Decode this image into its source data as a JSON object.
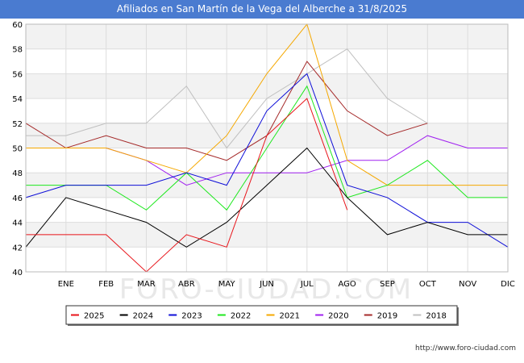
{
  "page": {
    "watermark": "FORO-CIUDAD.COM",
    "footer_url": "http://www.foro-ciudad.com"
  },
  "chart_data": {
    "type": "line",
    "title": "Afiliados en San Martín de la Vega del Alberche a 31/8/2025",
    "xlabel": "",
    "ylabel": "",
    "x": [
      "",
      "ENE",
      "FEB",
      "MAR",
      "ABR",
      "MAY",
      "JUN",
      "JUL",
      "AGO",
      "SEP",
      "OCT",
      "NOV",
      "DIC"
    ],
    "ylim": [
      40,
      60
    ],
    "yticks": [
      40,
      42,
      44,
      46,
      48,
      50,
      52,
      54,
      56,
      58,
      60
    ],
    "grid": true,
    "legend_position": "bottom",
    "series": [
      {
        "name": "2025",
        "color": "#e8141a",
        "values": [
          43,
          43,
          43,
          40,
          43,
          42,
          51,
          54,
          45,
          null,
          null,
          null,
          null
        ]
      },
      {
        "name": "2024",
        "color": "#000000",
        "values": [
          42,
          46,
          45,
          44,
          42,
          44,
          47,
          50,
          46,
          43,
          44,
          43,
          43
        ]
      },
      {
        "name": "2023",
        "color": "#0f0fd8",
        "values": [
          46,
          47,
          47,
          47,
          48,
          47,
          53,
          56,
          47,
          46,
          44,
          44,
          42
        ]
      },
      {
        "name": "2022",
        "color": "#1ee81e",
        "values": [
          47,
          47,
          47,
          45,
          48,
          45,
          50,
          55,
          46,
          47,
          49,
          46,
          46
        ]
      },
      {
        "name": "2021",
        "color": "#f5a800",
        "values": [
          50,
          50,
          50,
          49,
          48,
          51,
          56,
          60,
          49,
          47,
          47,
          47,
          47
        ]
      },
      {
        "name": "2020",
        "color": "#a020f0",
        "values": [
          null,
          50,
          50,
          49,
          47,
          48,
          48,
          48,
          49,
          49,
          51,
          50,
          50
        ]
      },
      {
        "name": "2019",
        "color": "#a52a2a",
        "values": [
          52,
          50,
          51,
          50,
          50,
          49,
          51,
          57,
          53,
          51,
          52,
          null,
          null
        ]
      },
      {
        "name": "2018",
        "color": "#c0c0c0",
        "values": [
          51,
          51,
          52,
          52,
          55,
          50,
          54,
          56,
          58,
          54,
          52,
          null,
          null
        ]
      }
    ]
  }
}
